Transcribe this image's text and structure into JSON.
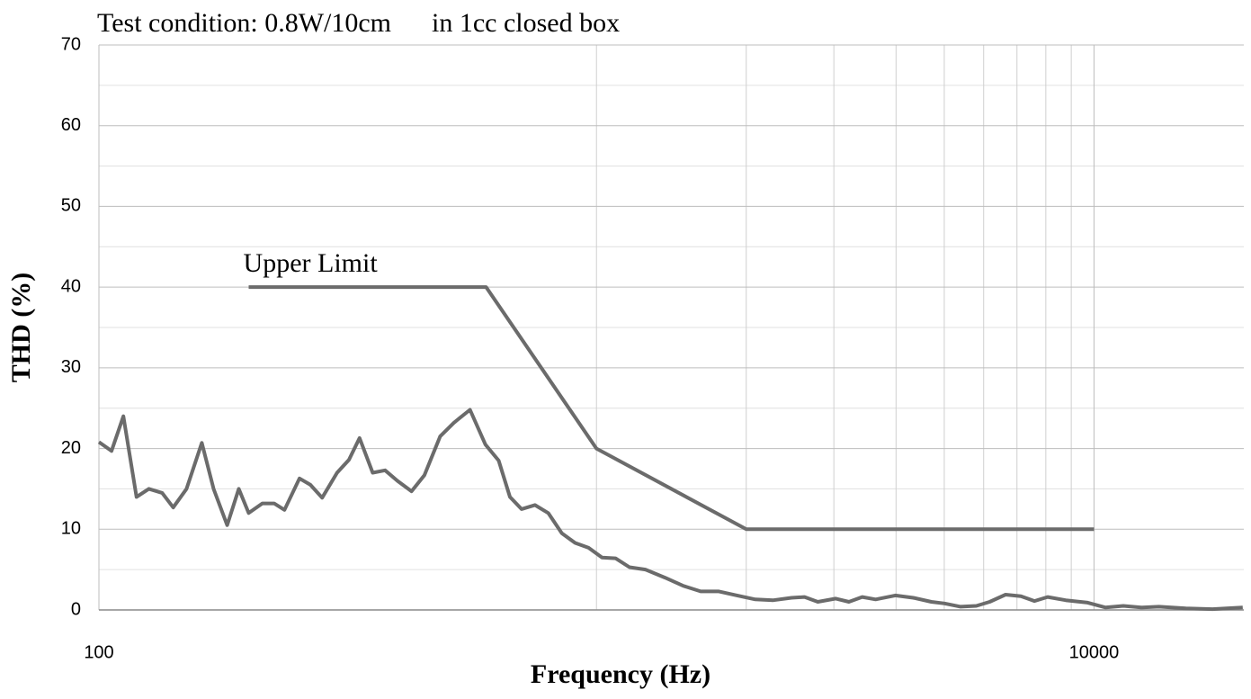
{
  "chart_data": {
    "type": "line",
    "title": "Test condition: 0.8W/10cm      in 1cc closed box",
    "x_label": "Frequency (Hz)",
    "y_label": "THD (%)",
    "xscale": "log",
    "xlim": [
      100,
      20000
    ],
    "ylim": [
      0,
      70
    ],
    "xticks": [
      100,
      10000
    ],
    "yticks": [
      0,
      10,
      20,
      30,
      40,
      50,
      60,
      70
    ],
    "xgrid": [
      1000,
      2000,
      3000,
      4000,
      5000,
      6000,
      7000,
      8000,
      9000
    ],
    "ygrid_minor": [
      5,
      15,
      25,
      35,
      45,
      55,
      65
    ],
    "grid": true,
    "series": [
      {
        "name": "Upper Limit",
        "color": "#6b6b6b",
        "x": [
          200,
          600,
          1000,
          2000,
          10000
        ],
        "values": [
          40,
          40,
          20,
          10,
          10
        ]
      },
      {
        "color": "#6b6b6b",
        "x": [
          100,
          106,
          112,
          119,
          126,
          134,
          141,
          150,
          161,
          170,
          181,
          191,
          200,
          213,
          225,
          236,
          253,
          266,
          281,
          301,
          318,
          334,
          355,
          376,
          398,
          425,
          451,
          485,
          517,
          557,
          598,
          636,
          670,
          707,
          752,
          800,
          852,
          906,
          964,
          1026,
          1092,
          1165,
          1254,
          1373,
          1492,
          1620,
          1762,
          1917,
          2085,
          2267,
          2466,
          2620,
          2785,
          3027,
          3216,
          3420,
          3640,
          3986,
          4332,
          4710,
          5007,
          5393,
          5800,
          6170,
          6640,
          7130,
          7590,
          8070,
          8770,
          9710,
          10550,
          11450,
          12440,
          13500,
          15300,
          17300,
          19900
        ],
        "values": [
          20.8,
          19.7,
          24,
          14,
          15,
          14.5,
          12.7,
          15,
          20.7,
          15,
          10.5,
          15,
          12,
          13.2,
          13.2,
          12.4,
          16.3,
          15.5,
          13.9,
          17,
          18.6,
          21.3,
          17,
          17.3,
          16,
          14.7,
          16.7,
          21.5,
          23.2,
          24.8,
          20.5,
          18.5,
          14,
          12.5,
          13,
          12,
          9.5,
          8.3,
          7.7,
          6.5,
          6.4,
          5.3,
          5,
          4,
          3,
          2.3,
          2.3,
          1.8,
          1.3,
          1.2,
          1.5,
          1.6,
          1.0,
          1.4,
          1.0,
          1.6,
          1.3,
          1.8,
          1.5,
          1.0,
          0.8,
          0.4,
          0.5,
          1.0,
          1.9,
          1.7,
          1.1,
          1.6,
          1.2,
          0.9,
          0.3,
          0.5,
          0.3,
          0.4,
          0.2,
          0.1,
          0.3
        ]
      }
    ]
  }
}
